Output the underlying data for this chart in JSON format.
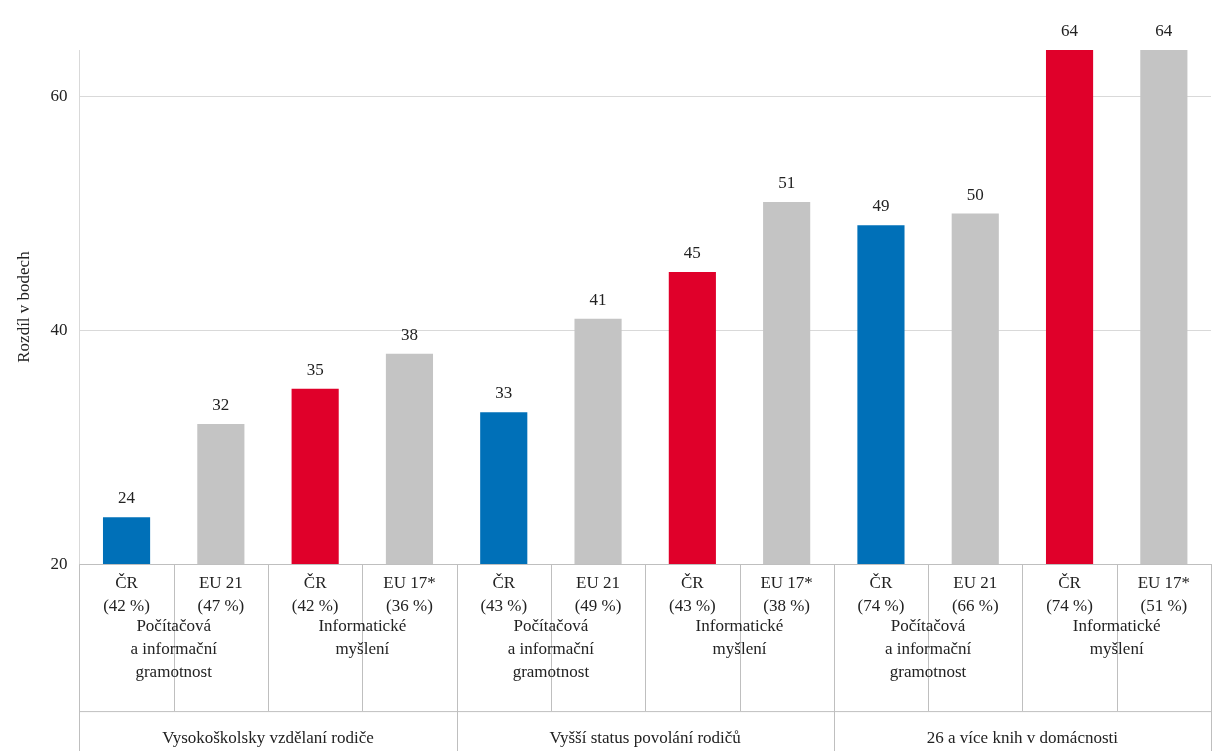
{
  "chart_data": {
    "type": "bar",
    "ylabel": "Rozdíl v bodech",
    "categories": [
      "ČR\n(42 %)",
      "EU 21\n(47 %)",
      "ČR\n(42 %)",
      "EU 17*\n(36 %)",
      "ČR\n(43 %)",
      "EU 21\n(49 %)",
      "ČR\n(43 %)",
      "EU 17*\n(38 %)",
      "ČR\n(74 %)",
      "EU 21\n(66 %)",
      "ČR\n(74 %)",
      "EU 17*\n(51 %)"
    ],
    "values": [
      24,
      32,
      35,
      38,
      33,
      41,
      45,
      51,
      49,
      50,
      64,
      64
    ],
    "colors": [
      "#0070b8",
      "#c4c4c4",
      "#e0002a",
      "#c4c4c4",
      "#0070b8",
      "#c4c4c4",
      "#e0002a",
      "#c4c4c4",
      "#0070b8",
      "#c4c4c4",
      "#e0002a",
      "#c4c4c4"
    ],
    "ylim": [
      20,
      64
    ],
    "yticks": [
      20,
      40,
      60
    ],
    "grid": "y",
    "data_labels": true,
    "legend": false,
    "annotations": [
      "Počítačová\na informační\ngramotnost",
      "Informatické\nmyšlení",
      "Počítačová\na informační\ngramotnost",
      "Informatické\nmyšlení",
      "Počítačová\na informační\ngramotnost",
      "Informatické\nmyšlení",
      "Vysokoškolsky vzdělaní rodiče",
      "Vyšší status povolání rodičů",
      "26 a více knih v domácnosti"
    ]
  }
}
